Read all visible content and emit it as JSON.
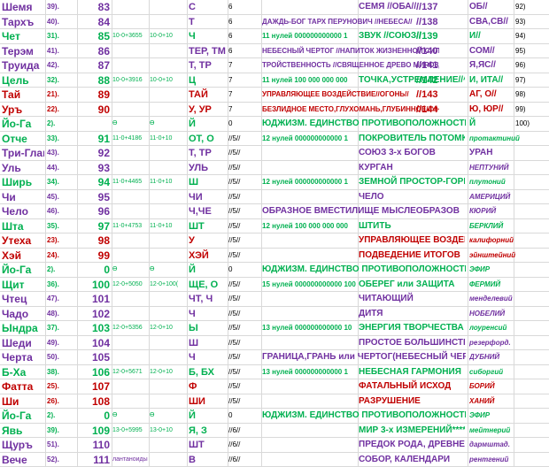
{
  "colors": {
    "purple": "#7030a0",
    "green": "#00b050",
    "red": "#c00000",
    "black": "#000000"
  },
  "rows": [
    {
      "name": "Шемя",
      "num": "39).",
      "val": "83",
      "a": "",
      "b": "",
      "letter": "С",
      "m": "6",
      "word": "",
      "phrase": "СЕМЯ //ОБА//",
      "ref": "//137",
      "tail": "ОБ//",
      "end": "92)",
      "color": "purple",
      "span": false,
      "italTail": false
    },
    {
      "name": "Тархъ",
      "num": "40).",
      "val": "84",
      "a": "",
      "b": "",
      "letter": "Т",
      "m": "6",
      "word": "",
      "phrase": "ДАЖДЬ-БОГ ТАРХ ПЕРУНОВИЧ //НЕБЕСА//",
      "ref": "//138",
      "tail": "СВА,СВ//",
      "end": "93)",
      "color": "purple",
      "span": true,
      "italTail": false
    },
    {
      "name": "Чет",
      "num": "31).",
      "val": "85",
      "a": "10-0+3655",
      "b": "10-0+10",
      "letter": "Ч",
      "m": "6",
      "word": "11 нулей  000000000000 1",
      "phrase": "ЗВУК     //СОЮЗ//",
      "ref": "//139",
      "tail": "И//",
      "end": "94)",
      "color": "green",
      "span": false,
      "italTail": false
    },
    {
      "name": "Терэм",
      "num": "41).",
      "val": "86",
      "a": "",
      "b": "",
      "letter": "ТЕР, ТМ",
      "m": "6",
      "word": "",
      "phrase": "НЕБЕСНЫЙ ЧЕРТОГ //НАПИТОК ЖИЗНЕННОЙ СИЛЫ//",
      "ref": "//140",
      "tail": "СОМ//",
      "end": "95)",
      "color": "purple",
      "span": true,
      "italTail": false
    },
    {
      "name": "Труида",
      "num": "42).",
      "val": "87",
      "a": "",
      "b": "",
      "letter": "Т, ТР",
      "m": "7",
      "word": "",
      "phrase": "ТРОЙСТВЕННОСТЬ //СВЯЩЕННОЕ ДРЕВО МИРОЗДАНИЯ//",
      "ref": "//141",
      "tail": "Я,ЯС//",
      "end": "96)",
      "color": "purple",
      "span": true,
      "italTail": false
    },
    {
      "name": "Цель",
      "num": "32).",
      "val": "88",
      "a": "10-0+3916",
      "b": "10-0+10",
      "letter": "Ц",
      "m": "7",
      "word": "11 нулей  100 000 000 000",
      "phrase": "ТОЧКА,УСТРЕМЛЕНИЕ//^^",
      "ref": "//142",
      "tail": "И, ИТА//",
      "end": "97)",
      "color": "green",
      "span": false,
      "italTail": false
    },
    {
      "name": "Тай",
      "num": "21).",
      "val": "89",
      "a": "",
      "b": "",
      "letter": "ТАЙ",
      "m": "7",
      "word": "",
      "phrase": "УПРАВЛЯЮЩЕЕ ВОЗДЕЙСТВИЕ//ОГОНЬ//",
      "ref": "//143",
      "tail": "АГ, О//",
      "end": "98)",
      "color": "red",
      "span": true,
      "italTail": false
    },
    {
      "name": "Уръ",
      "num": "22).",
      "val": "90",
      "a": "",
      "b": "",
      "letter": "У, УР",
      "m": "7",
      "word": "",
      "phrase": "БЕЗЛИДНОЕ МЕСТО,ГЛУХОМАНЬ,ГЛУБИННОЕ//^^^",
      "ref": "//144",
      "tail": "Ю, ЮР//",
      "end": "99)",
      "color": "red",
      "span": true,
      "italTail": false
    },
    {
      "name": "Йо-Га",
      "num": "2).",
      "val": "",
      "a": "Ө",
      "b": "Ө",
      "letter": "Й",
      "m": "0",
      "word": "ЮДЖИЗМ. ЕДИНСТВО ПРОТИВОПОЛОЖНОСТЕЙ",
      "phrase": "",
      "ref": "",
      "tail": "Й",
      "end": "100)",
      "color": "green",
      "span": false,
      "italTail": false
    },
    {
      "name": "Отче",
      "num": "33).",
      "val": "91",
      "a": "11-0+4186",
      "b": "11-0+10",
      "letter": "ОТ, О",
      "m": "//5//",
      "word": "12 нулей  000000000000 1",
      "phrase": "ПОКРОВИТЕЛЬ ПОТОМКОВ РОДА",
      "ref": "",
      "tail": "протактиний",
      "end": "",
      "color": "green",
      "span": false,
      "italTail": true
    },
    {
      "name": "Три-Глав",
      "num": "43).",
      "val": "92",
      "a": "",
      "b": "",
      "letter": "Т, ТР",
      "m": "//5//",
      "word": "",
      "phrase": "СОЮЗ 3-х БОГОВ",
      "ref": "",
      "tail": "УРАН",
      "end": "",
      "color": "purple",
      "span": false,
      "italTail": false
    },
    {
      "name": "Уль",
      "num": "44).",
      "val": "93",
      "a": "",
      "b": "",
      "letter": "УЛЬ",
      "m": "//5//",
      "word": "",
      "phrase": "КУРГАН",
      "ref": "",
      "tail": "НЕПТУНИЙ",
      "end": "",
      "color": "purple",
      "span": false,
      "italTail": true
    },
    {
      "name": "Ширь",
      "num": "34).",
      "val": "94",
      "a": "11-0+4465",
      "b": "11-0+10",
      "letter": "Ш",
      "m": "//5//",
      "word": "12 нулей  000000000000 1",
      "phrase": "ЗЕМНОЙ ПРОСТОР-ГОРИЗОНТ",
      "ref": "",
      "tail": "плутоний",
      "end": "",
      "color": "green",
      "span": false,
      "italTail": true
    },
    {
      "name": "Чи",
      "num": "45).",
      "val": "95",
      "a": "",
      "b": "",
      "letter": "ЧИ",
      "m": "//5//",
      "word": "",
      "phrase": "ЧЕЛО",
      "ref": "",
      "tail": "АМЕРИЦИЙ",
      "end": "",
      "color": "purple",
      "span": false,
      "italTail": true
    },
    {
      "name": "Чело",
      "num": "46).",
      "val": "96",
      "a": "",
      "b": "",
      "letter": "Ч,ЧЕ",
      "m": "//5//",
      "word": "ОБРАЗНОЕ ВМЕСТИЛИЩЕ МЫСЛЕОБРАЗОВ",
      "phrase": "",
      "ref": "",
      "tail": "КЮРИЙ",
      "end": "",
      "color": "purple",
      "span": false,
      "italTail": true
    },
    {
      "name": "Шта",
      "num": "35).",
      "val": "97",
      "a": "11-0+4753",
      "b": "11-0+10",
      "letter": "ШТ",
      "m": "//5//",
      "word": "12 нулей  100 000 000 000",
      "phrase": "ШТИТЬ",
      "ref": "",
      "tail": "БЕРКЛИЙ",
      "end": "",
      "color": "green",
      "span": false,
      "italTail": true
    },
    {
      "name": "Утеха",
      "num": "23).",
      "val": "98",
      "a": "",
      "b": "",
      "letter": "У",
      "m": "//5//",
      "word": "",
      "phrase": "УПРАВЛЯЮЩЕЕ ВОЗДЕЙСТВИЕ",
      "ref": "",
      "tail": "калифорний",
      "end": "",
      "color": "red",
      "span": false,
      "italTail": true
    },
    {
      "name": "Хэй",
      "num": "24).",
      "val": "99",
      "a": "",
      "b": "",
      "letter": "ХЭЙ",
      "m": "//5//",
      "word": "",
      "phrase": "ПОДВЕДЕНИЕ ИТОГОВ",
      "ref": "",
      "tail": "эйнштейний",
      "end": "",
      "color": "red",
      "span": false,
      "italTail": true
    },
    {
      "name": "Йо-Га",
      "num": "2).",
      "val": "0",
      "a": "Ө",
      "b": "Ө",
      "letter": "Й",
      "m": "0",
      "word": "ЮДЖИЗМ. ЕДИНСТВО ПРОТИВОПОЛОЖНОСТЕЙ",
      "phrase": "",
      "ref": "",
      "tail": "ЭФИР",
      "end": "",
      "color": "green",
      "span": false,
      "italTail": true
    },
    {
      "name": "Щит",
      "num": "36).",
      "val": "100",
      "a": "12-0+5050",
      "b": "12-0+100(",
      "letter": "ЩЕ, О",
      "m": "//5//",
      "word": "15 нулей  000000000000 100",
      "phrase": "ОБЕРЕГ или ЗАЩИТА",
      "ref": "",
      "tail": "ФЕРМИЙ",
      "end": "",
      "color": "green",
      "span": false,
      "italTail": true
    },
    {
      "name": "Чтец",
      "num": "47).",
      "val": "101",
      "a": "",
      "b": "",
      "letter": "ЧТ, Ч",
      "m": "//5//",
      "word": "",
      "phrase": "ЧИТАЮЩИЙ",
      "ref": "",
      "tail": "менделевий",
      "end": "",
      "color": "purple",
      "span": false,
      "italTail": true
    },
    {
      "name": "Чадо",
      "num": "48).",
      "val": "102",
      "m": "//5//",
      "a": "",
      "b": "",
      "letter": "Ч",
      "word": "",
      "phrase": "ДИТЯ",
      "ref": "",
      "tail": "НОБЕЛИЙ",
      "end": "",
      "color": "purple",
      "span": false,
      "italTail": true
    },
    {
      "name": "Ындра",
      "num": "37).",
      "val": "103",
      "a": "12-0+5356",
      "b": "12-0+10",
      "letter": "Ы",
      "m": "//5//",
      "word": "13 нулей  000000000000 10",
      "phrase": "ЭНЕРГИЯ ТВОРЧЕСТВА",
      "ref": "",
      "tail": "лоуренсий",
      "end": "",
      "color": "green",
      "span": false,
      "italTail": true
    },
    {
      "name": "Шеди",
      "num": "49).",
      "val": "104",
      "a": "",
      "b": "",
      "letter": "Ш",
      "m": "//5//",
      "word": "",
      "phrase": "ПРОСТОЕ БОЛЬШИНСТВО",
      "ref": "",
      "tail": "резерфорд.",
      "end": "",
      "color": "purple",
      "span": false,
      "italTail": true
    },
    {
      "name": "Черта",
      "num": "50).",
      "val": "105",
      "a": "",
      "b": "",
      "letter": "Ч",
      "m": "//5//",
      "word": "ГРАНИЦА,ГРАНЬ или ЧЕРТОГ(НЕБЕСНЫЙ ЧЕРТОГ)",
      "phrase": "",
      "ref": "",
      "tail": "ДУБНИЙ",
      "end": "",
      "color": "purple",
      "span": false,
      "italTail": true
    },
    {
      "name": "Б-Ха",
      "num": "38).",
      "val": "106",
      "a": "12-0+5671",
      "b": "12-0+10",
      "letter": "Б, БХ",
      "m": "//5//",
      "word": "13 нулей  000000000000 1",
      "phrase": "НЕБЕСНАЯ ГАРМОНИЯ",
      "ref": "",
      "tail": "сиборгий",
      "end": "",
      "color": "green",
      "span": false,
      "italTail": true
    },
    {
      "name": "Фатта",
      "num": "25).",
      "val": "107",
      "a": "",
      "b": "",
      "letter": "Ф",
      "m": "//5//",
      "word": "",
      "phrase": "ФАТАЛЬНЫЙ ИСХОД",
      "ref": "",
      "tail": "БОРИЙ",
      "end": "",
      "color": "red",
      "span": false,
      "italTail": true
    },
    {
      "name": "Ши",
      "num": "26).",
      "val": "108",
      "a": "",
      "b": "",
      "letter": "ШИ",
      "m": "//5//",
      "word": "",
      "phrase": "РАЗРУШЕНИЕ",
      "ref": "",
      "tail": "ХАНИЙ",
      "end": "",
      "color": "red",
      "span": false,
      "italTail": true
    },
    {
      "name": "Йо-Га",
      "num": "2).",
      "val": "0",
      "a": "Ө",
      "b": "Ө",
      "letter": "Й",
      "m": "0",
      "word": "ЮДЖИЗМ. ЕДИНСТВО ПРОТИВОПОЛОЖНОСТЕЙ",
      "phrase": "",
      "ref": "",
      "tail": "ЭФИР",
      "end": "",
      "color": "green",
      "span": false,
      "italTail": true
    },
    {
      "name": "Явь",
      "num": "39).",
      "val": "109",
      "a": "13-0+5995",
      "b": "13-0+10",
      "letter": "Я, З",
      "m": "//6//",
      "word": "",
      "phrase": "МИР 3-х ИЗМЕРЕНИЙ*****",
      "ref": "",
      "tail": "мейтнерий",
      "end": "",
      "color": "green",
      "span": false,
      "italTail": true
    },
    {
      "name": "Щуръ",
      "num": "51).",
      "val": "110",
      "a": "",
      "b": "",
      "letter": "ШТ",
      "m": "//6//",
      "word": "",
      "phrase": "ПРЕДОК РОДА, ДРЕВНЕЕ ЩУРА",
      "ref": "",
      "tail": "дармштад.",
      "end": "",
      "color": "purple",
      "span": false,
      "italTail": true
    },
    {
      "name": "Вече",
      "num": "52).",
      "val": "111",
      "a": "лантаноиды",
      "b": "",
      "letter": "В",
      "m": "//6//",
      "word": "",
      "phrase": "СОБОР, КАЛЕНДАРИ",
      "ref": "",
      "tail": "рентгений",
      "end": "",
      "color": "purple",
      "span": false,
      "italTail": true
    }
  ]
}
